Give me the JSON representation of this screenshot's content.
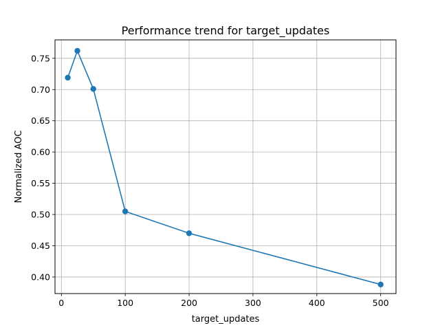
{
  "chart_data": {
    "type": "line",
    "title": "Performance trend for target_updates",
    "xlabel": "target_updates",
    "ylabel": "Normalized AOC",
    "xlim": [
      -10,
      524
    ],
    "ylim": [
      0.3735,
      0.7795
    ],
    "xticks": [
      0,
      100,
      200,
      300,
      400,
      500
    ],
    "xtick_labels": [
      "0",
      "100",
      "200",
      "300",
      "400",
      "500"
    ],
    "yticks": [
      0.4,
      0.45,
      0.5,
      0.55,
      0.6,
      0.65,
      0.7,
      0.75
    ],
    "ytick_labels": [
      "0.40",
      "0.45",
      "0.50",
      "0.55",
      "0.60",
      "0.65",
      "0.70",
      "0.75"
    ],
    "grid": true,
    "series": [
      {
        "x": [
          10,
          25,
          50,
          100,
          200,
          500
        ],
        "y": [
          0.719,
          0.762,
          0.701,
          0.505,
          0.47,
          0.388
        ],
        "color": "#1f77b4",
        "marker": "circle"
      }
    ]
  }
}
